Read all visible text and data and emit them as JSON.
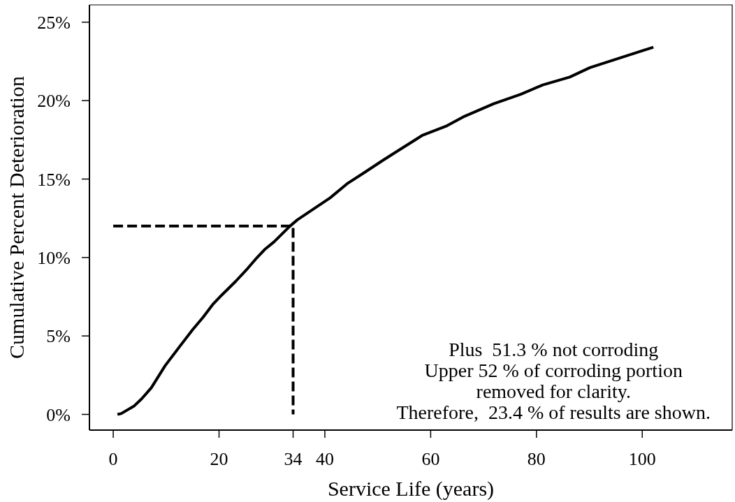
{
  "chart_data": {
    "type": "line",
    "xlabel": "Service Life (years)",
    "ylabel": "Cumulative Percent Deterioration",
    "xlim": [
      -4.5,
      117
    ],
    "xticks": [
      0,
      20,
      34,
      40,
      60,
      80,
      100
    ],
    "ylim": [
      -1,
      26.1
    ],
    "yticks": [
      {
        "value": 0,
        "label": "0%"
      },
      {
        "value": 5,
        "label": "5%"
      },
      {
        "value": 10,
        "label": "10%"
      },
      {
        "value": 15,
        "label": "15%"
      },
      {
        "value": 20,
        "label": "20%"
      },
      {
        "value": 25,
        "label": "25%"
      }
    ],
    "series": [
      {
        "color": "#000000",
        "line_style": "solid",
        "x": [
          0.8,
          1.5,
          4.0,
          5.4,
          7.2,
          9.8,
          12.5,
          15.0,
          17.0,
          18.8,
          20.5,
          23.2,
          25.4,
          27.2,
          28.6,
          30.4,
          33.4,
          34.8,
          37.9,
          41.0,
          44.2,
          47.4,
          51.0,
          53.8,
          57.1,
          58.5,
          63.1,
          66.4,
          71.9,
          77.0,
          81.2,
          86.3,
          90.1,
          94.7,
          99.3,
          102.1
        ],
        "values": [
          0,
          0.05,
          0.55,
          1.0,
          1.7,
          3.1,
          4.3,
          5.4,
          6.2,
          7.0,
          7.6,
          8.5,
          9.3,
          10.0,
          10.5,
          11.0,
          12.0,
          12.4,
          13.1,
          13.8,
          14.7,
          15.4,
          16.2,
          16.8,
          17.5,
          17.8,
          18.4,
          19.0,
          19.8,
          20.4,
          21.0,
          21.5,
          22.1,
          22.6,
          23.1,
          23.4
        ]
      },
      {
        "type": "line",
        "color": "#000000",
        "line_style": "dashed",
        "x": [
          0,
          34,
          34
        ],
        "values": [
          12,
          12,
          0
        ]
      }
    ],
    "annotations": [
      "Plus  51.3 % not corroding",
      "Upper 52 % of corroding portion",
      "removed for clarity.",
      "Therefore,  23.4 % of results are shown."
    ]
  }
}
